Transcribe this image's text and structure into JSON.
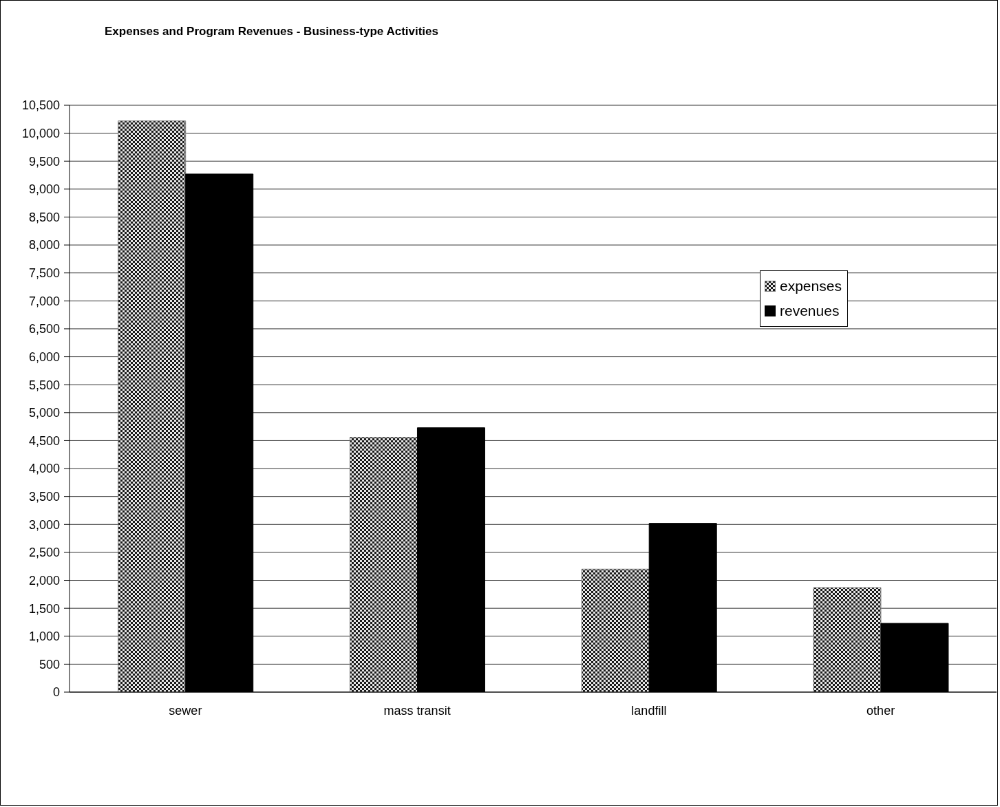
{
  "chart_data": {
    "type": "bar",
    "title": "Expenses and Program Revenues - Business-type Activities",
    "categories": [
      "sewer",
      "mass transit",
      "landfill",
      "other"
    ],
    "series": [
      {
        "name": "expenses",
        "color": "#808080",
        "values": [
          10220,
          4560,
          2200,
          1870
        ]
      },
      {
        "name": "revenues",
        "color": "#000000",
        "values": [
          9270,
          4730,
          3020,
          1230
        ]
      }
    ],
    "ylim": [
      0,
      10500
    ],
    "yticks": [
      0,
      500,
      {
        "value": 1000,
        "label": "1,000"
      },
      {
        "value": 1500,
        "label": "1,500"
      },
      {
        "value": 2000,
        "label": "2,000"
      },
      {
        "value": 2500,
        "label": "2,500"
      },
      {
        "value": 3000,
        "label": "3,000"
      },
      {
        "value": 3500,
        "label": "3,500"
      },
      {
        "value": 4000,
        "label": "4,000"
      },
      {
        "value": 4500,
        "label": "4,500"
      },
      {
        "value": 5000,
        "label": "5,000"
      },
      {
        "value": 5500,
        "label": "5,500"
      },
      {
        "value": 6000,
        "label": "6,000"
      },
      {
        "value": 6500,
        "label": "6,500"
      },
      {
        "value": 7000,
        "label": "7,000"
      },
      {
        "value": 7500,
        "label": "7,500"
      },
      {
        "value": 8000,
        "label": "8,000"
      },
      {
        "value": 8500,
        "label": "8,500"
      },
      {
        "value": 9000,
        "label": "9,000"
      },
      {
        "value": 9500,
        "label": "9,500"
      },
      {
        "value": 10000,
        "label": "10,000"
      },
      {
        "value": 10500,
        "label": "10,500"
      }
    ],
    "grid": "y",
    "legend": "right"
  }
}
